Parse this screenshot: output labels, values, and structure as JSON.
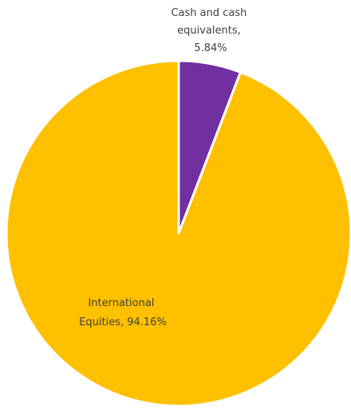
{
  "chart_data": {
    "type": "pie",
    "title": "",
    "slices": [
      {
        "label": "Cash and cash equivalents",
        "value": 5.84,
        "color": "#7030A0",
        "label_lines": [
          "Cash and cash",
          "equivalents,",
          "5.84%"
        ]
      },
      {
        "label": "International Equities",
        "value": 94.16,
        "color": "#FFC000",
        "label_lines": [
          "International",
          "Equities, 94.16%"
        ]
      }
    ],
    "start_angle": "12 o'clock",
    "direction": "clockwise",
    "legend": "none"
  }
}
